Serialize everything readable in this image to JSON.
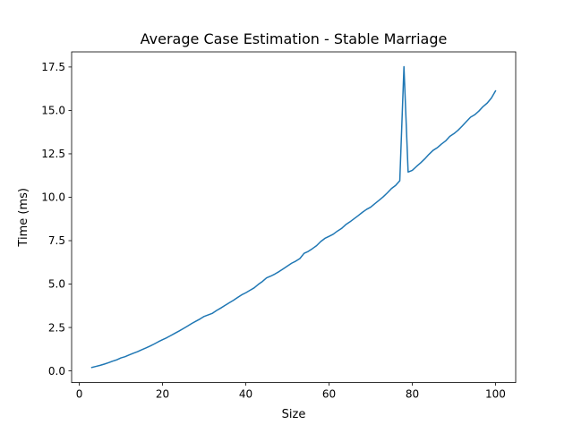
{
  "chart_data": {
    "type": "line",
    "title": "Average Case Estimation - Stable Marriage",
    "xlabel": "Size",
    "ylabel": "Time (ms)",
    "xlim": [
      -1.85,
      104.85
    ],
    "ylim": [
      -0.67,
      18.37
    ],
    "xticks": [
      0,
      20,
      40,
      60,
      80,
      100
    ],
    "xtick_labels": [
      "0",
      "20",
      "40",
      "60",
      "80",
      "100"
    ],
    "yticks": [
      0.0,
      2.5,
      5.0,
      7.5,
      10.0,
      12.5,
      15.0,
      17.5
    ],
    "ytick_labels": [
      "0.0",
      "2.5",
      "5.0",
      "7.5",
      "10.0",
      "12.5",
      "15.0",
      "17.5"
    ],
    "grid": false,
    "series": [
      {
        "color": "#1f77b4",
        "x": [
          3,
          4,
          5,
          6,
          7,
          8,
          9,
          10,
          11,
          12,
          13,
          14,
          15,
          16,
          17,
          18,
          19,
          20,
          21,
          22,
          23,
          24,
          25,
          26,
          27,
          28,
          29,
          30,
          31,
          32,
          33,
          34,
          35,
          36,
          37,
          38,
          39,
          40,
          41,
          42,
          43,
          44,
          45,
          46,
          47,
          48,
          49,
          50,
          51,
          52,
          53,
          54,
          55,
          56,
          57,
          58,
          59,
          60,
          61,
          62,
          63,
          64,
          65,
          66,
          67,
          68,
          69,
          70,
          71,
          72,
          73,
          74,
          75,
          76,
          77,
          78,
          79,
          80,
          81,
          82,
          83,
          84,
          85,
          86,
          87,
          88,
          89,
          90,
          91,
          92,
          93,
          94,
          95,
          96,
          97,
          98,
          99,
          100
        ],
        "y": [
          0.2,
          0.26,
          0.32,
          0.39,
          0.47,
          0.56,
          0.64,
          0.75,
          0.82,
          0.92,
          1.02,
          1.11,
          1.22,
          1.32,
          1.43,
          1.55,
          1.68,
          1.8,
          1.91,
          2.04,
          2.17,
          2.3,
          2.44,
          2.58,
          2.73,
          2.86,
          2.99,
          3.14,
          3.23,
          3.32,
          3.48,
          3.62,
          3.77,
          3.92,
          4.06,
          4.22,
          4.38,
          4.5,
          4.64,
          4.78,
          4.98,
          5.15,
          5.36,
          5.46,
          5.58,
          5.72,
          5.88,
          6.04,
          6.2,
          6.32,
          6.47,
          6.77,
          6.88,
          7.04,
          7.21,
          7.45,
          7.63,
          7.75,
          7.87,
          8.05,
          8.2,
          8.42,
          8.58,
          8.76,
          8.94,
          9.13,
          9.3,
          9.43,
          9.63,
          9.82,
          10.02,
          10.25,
          10.5,
          10.68,
          10.95,
          17.52,
          11.45,
          11.55,
          11.77,
          11.98,
          12.21,
          12.47,
          12.7,
          12.85,
          13.06,
          13.24,
          13.5,
          13.66,
          13.86,
          14.1,
          14.36,
          14.61,
          14.75,
          14.96,
          15.22,
          15.42,
          15.71,
          16.12
        ]
      }
    ]
  }
}
